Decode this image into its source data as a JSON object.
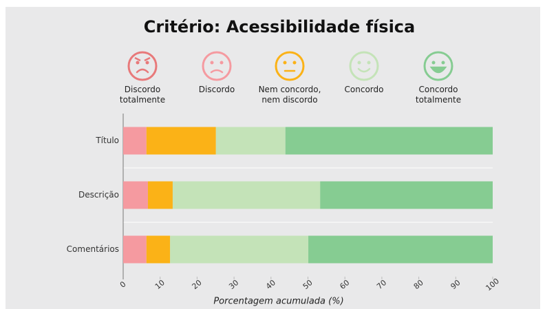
{
  "chart_data": {
    "type": "stacked_bar_horizontal",
    "title": "Critério: Acessibilidade física",
    "xlabel": "Porcentagem acumulada (%)",
    "categories": [
      "Título",
      "Descrição",
      "Comentários"
    ],
    "series": [
      {
        "name": "Discordo\ntotalmente",
        "color": "#e8797a",
        "values": [
          0,
          0,
          0
        ]
      },
      {
        "name": "Discordo",
        "color": "#f59aa0",
        "values": [
          6.3,
          6.7,
          6.3
        ]
      },
      {
        "name": "Nem concordo,\nnem discordo",
        "color": "#fbb217",
        "values": [
          18.8,
          6.7,
          6.4
        ]
      },
      {
        "name": "Concordo",
        "color": "#c4e3b8",
        "values": [
          18.8,
          39.9,
          37.4
        ]
      },
      {
        "name": "Concordo\ntotalmente",
        "color": "#86cc92",
        "values": [
          56.1,
          46.7,
          49.9
        ]
      }
    ],
    "xlim": [
      0,
      100
    ],
    "xticks": [
      0,
      10,
      20,
      30,
      40,
      50,
      60,
      70,
      80,
      90,
      100
    ],
    "grid": true
  }
}
